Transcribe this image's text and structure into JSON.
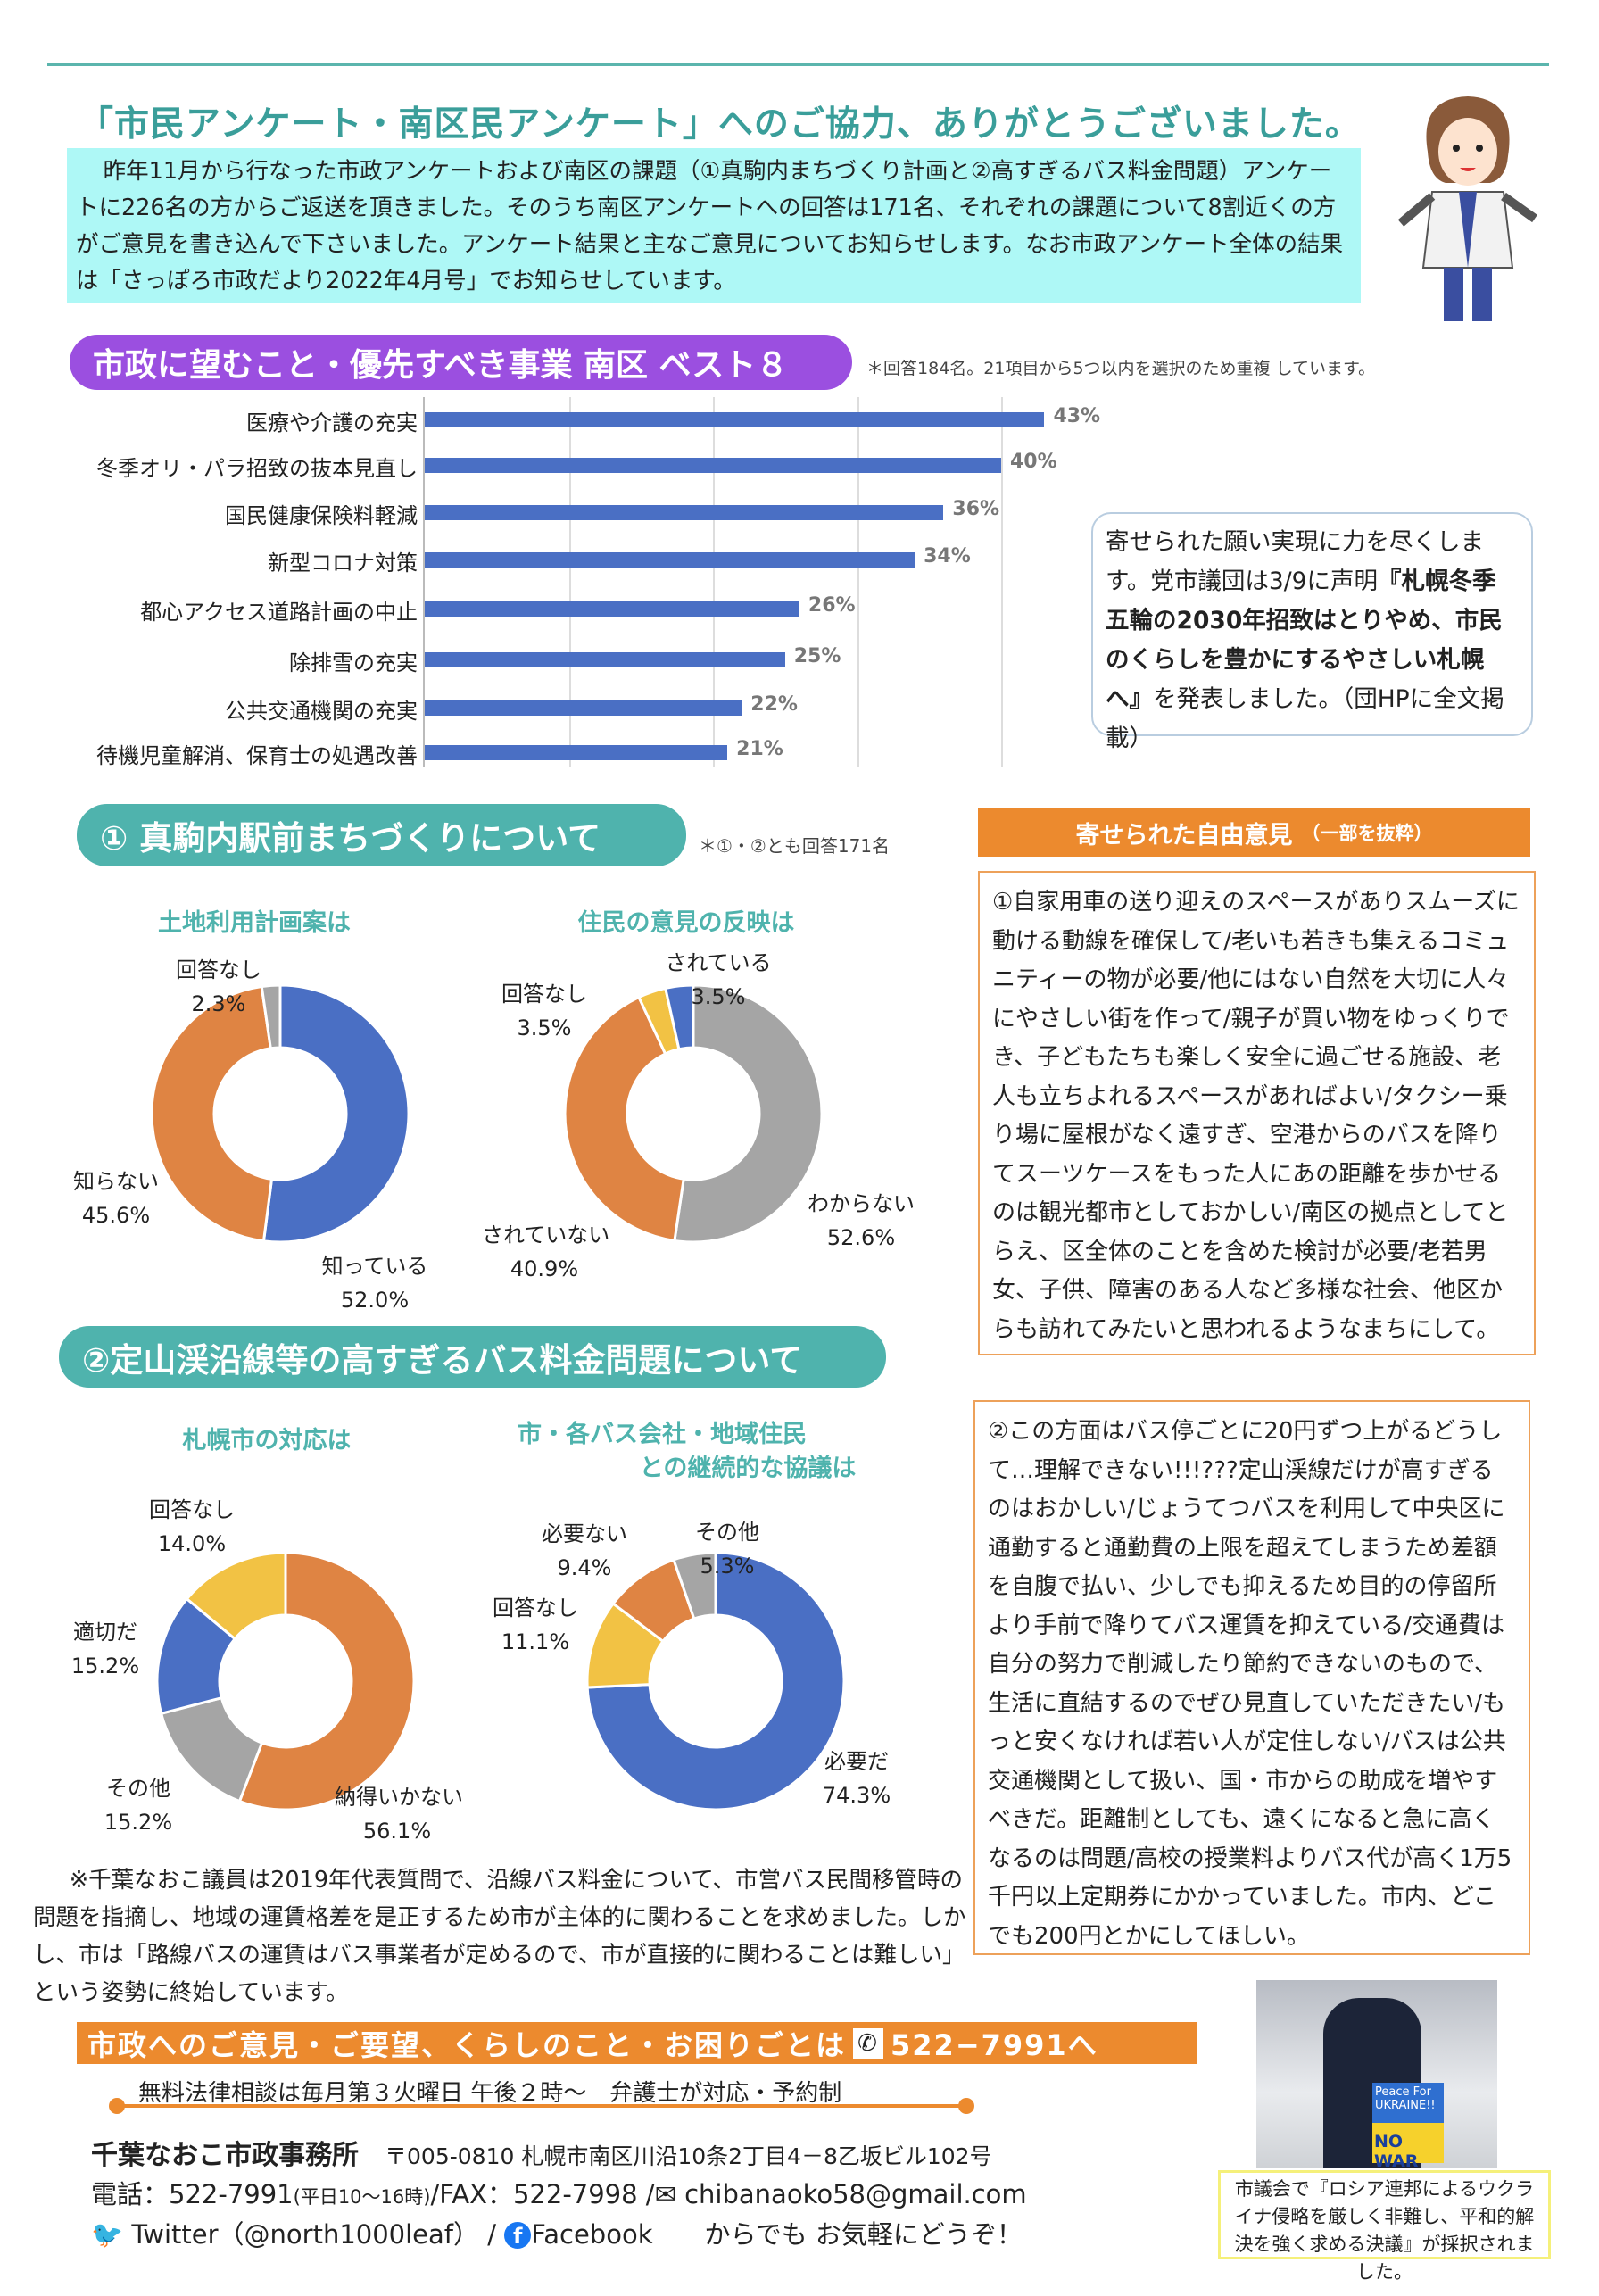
{
  "header": {
    "title": "「市民アンケート・南区民アンケート」へのご協力、ありがとうございました。",
    "intro": "昨年11月から行なった市政アンケートおよび南区の課題（①真駒内まちづくり計画と②高すぎるバス料金問題）アンケートに226名の方からご返送を頂きました。そのうち南区アンケートへの回答は171名、それぞれの課題について8割近くの方がご意見を書き込んで下さいました。アンケート結果と主なご意見についてお知らせします。なお市政アンケート全体の結果は「さっぽろ市政だより2022年4月号」でお知らせしています。"
  },
  "ranking": {
    "title": "市政に望むこと・優先すべき事業 南区 ベスト８",
    "note": "＊回答184名。21項目から5つ以内を選択のため重複 しています。"
  },
  "callout": {
    "line1": "寄せられた願い実現に力を尽くします。党市議団は3/9に声明",
    "bold": "『札幌冬季五輪の2030年招致はとりやめ、市民のくらしを豊かにするやさしい札幌へ』",
    "line2": "を発表しました。（団HPに全文掲載）"
  },
  "section1": {
    "title": "① 真駒内駅前まちづくりについて",
    "note": "＊①・②とも回答171名"
  },
  "section2": {
    "title": "②定山渓沿線等の高すぎるバス料金問題について"
  },
  "opinions": {
    "header": "寄せられた自由意見",
    "header_sub": "（一部を抜粋）",
    "text1": "①自家用車の送り迎えのスペースがありスムーズに動ける動線を確保して/老いも若きも集えるコミュニティーの物が必要/他にはない自然を大切に人々にやさしい街を作って/親子が買い物をゆっくりでき、子どもたちも楽しく安全に過ごせる施設、老人も立ちよれるスペースがあればよい/タクシー乗り場に屋根がなく遠すぎ、空港からのバスを降りてスーツケースをもった人にあの距離を歩かせるのは観光都市としておかしい/南区の拠点としてとらえ、区全体のことを含めた検討が必要/老若男女、子供、障害のある人など多様な社会、他区からも訪れてみたいと思われるようなまちにして。",
    "text2": "②この方面はバス停ごとに20円ずつ上がるどうして…理解できない!!!???定山渓線だけが高すぎるのはおかしい/じょうてつバスを利用して中央区に通勤すると通勤費の上限を超えてしまうため差額を自腹で払い、少しでも抑えるため目的の停留所より手前で降りてバス運賃を抑えている/交通費は自分の努力で削減したり節約できないのもので、生活に直結するのでぜひ見直していただきたい/もっと安くなければ若い人が定住しない/バスは公共交通機関として扱い、国・市からの助成を増やすべきだ。距離制としても、遠くになると急に高くなるのは問題/高校の授業料よりバス代が高く1万5千円以上定期券にかかっていました。市内、どこでも200円とかにしてほしい。"
  },
  "note_para": "※千葉なおこ議員は2019年代表質問で、沿線バス料金について、市営バス民間移管時の問題を指摘し、地域の運賃格差を是正するため市が主体的に関わることを求めました。しかし、市は「路線バスの運賃はバス事業者が定めるので、市が直接的に関わることは難しい」という姿勢に終始しています。",
  "footer": {
    "banner": "市政へのご意見・ご要望、くらしのこと・お困りごとは",
    "banner_phone": "522−7991へ",
    "legal": "無料法律相談は毎月第３火曜日 午後２時～　弁護士が対応・予約制",
    "office": "千葉なおこ市政事務所",
    "address": "〒005-0810 札幌市南区川沿10条2丁目4－8乙坂ビル102号",
    "tel": "電話：522-7991",
    "tel_hours": "(平日10～16時)",
    "fax": "/FAX：522-7998 /",
    "email": "chibanaoko58@gmail.com",
    "twitter": "Twitter（@north1000leaf）",
    "sep": "/",
    "facebook": "Facebook",
    "closing": "からでも お気軽にどうぞ！",
    "photo_sign1": "Peace For UKRAINE!!",
    "photo_sign2": "NO WAR",
    "caption": "市議会で『ロシア連邦によるウクライナ侵略を厳しく非難し、平和的解決を強く求める決議』が採択されました。"
  },
  "colors": {
    "blue": "#4a6fc4",
    "orange": "#df8443",
    "gray": "#a5a5a5",
    "yellow": "#f2c244",
    "teal": "#4fb3ad",
    "purple": "#9b4fe0"
  },
  "chart_data": [
    {
      "type": "bar",
      "title": "市政に望むこと・優先すべき事業 南区 ベスト８",
      "categories": [
        "医療や介護の充実",
        "冬季オリ・パラ招致の抜本見直し",
        "国民健康保険料軽減",
        "新型コロナ対策",
        "都心アクセス道路計画の中止",
        "除排雪の充実",
        "公共交通機関の充実",
        "待機児童解消、保育士の処遇改善"
      ],
      "values": [
        43,
        40,
        36,
        34,
        26,
        25,
        22,
        21
      ],
      "labels": [
        "43%",
        "40%",
        "36%",
        "34%",
        "26%",
        "25%",
        "22%",
        "21%"
      ],
      "xlim": [
        0,
        50
      ],
      "grid": true
    },
    {
      "type": "pie",
      "title": "土地利用計画案は",
      "slices": [
        {
          "label": "知っている",
          "value": 52.0,
          "text": "52.0%",
          "color": "blue"
        },
        {
          "label": "知らない",
          "value": 45.6,
          "text": "45.6%",
          "color": "orange"
        },
        {
          "label": "回答なし",
          "value": 2.3,
          "text": "2.3%",
          "color": "gray"
        }
      ]
    },
    {
      "type": "pie",
      "title": "住民の意見の反映は",
      "slices": [
        {
          "label": "わからない",
          "value": 52.6,
          "text": "52.6%",
          "color": "gray"
        },
        {
          "label": "されていない",
          "value": 40.9,
          "text": "40.9%",
          "color": "orange"
        },
        {
          "label": "回答なし",
          "value": 3.5,
          "text": "3.5%",
          "color": "yellow"
        },
        {
          "label": "されている",
          "value": 3.5,
          "text": "3.5%",
          "color": "blue"
        }
      ]
    },
    {
      "type": "pie",
      "title": "札幌市の対応は",
      "slices": [
        {
          "label": "納得いかない",
          "value": 56.1,
          "text": "56.1%",
          "color": "orange"
        },
        {
          "label": "その他",
          "value": 15.2,
          "text": "15.2%",
          "color": "gray"
        },
        {
          "label": "適切だ",
          "value": 15.2,
          "text": "15.2%",
          "color": "blue"
        },
        {
          "label": "回答なし",
          "value": 14.0,
          "text": "14.0%",
          "color": "yellow"
        }
      ]
    },
    {
      "type": "pie",
      "title": "市・各バス会社・地域住民",
      "title2": "との継続的な協議は",
      "slices": [
        {
          "label": "必要だ",
          "value": 74.3,
          "text": "74.3%",
          "color": "blue"
        },
        {
          "label": "回答なし",
          "value": 11.1,
          "text": "11.1%",
          "color": "yellow"
        },
        {
          "label": "必要ない",
          "value": 9.4,
          "text": "9.4%",
          "color": "orange"
        },
        {
          "label": "その他",
          "value": 5.3,
          "text": "5.3%",
          "color": "gray"
        }
      ]
    }
  ]
}
